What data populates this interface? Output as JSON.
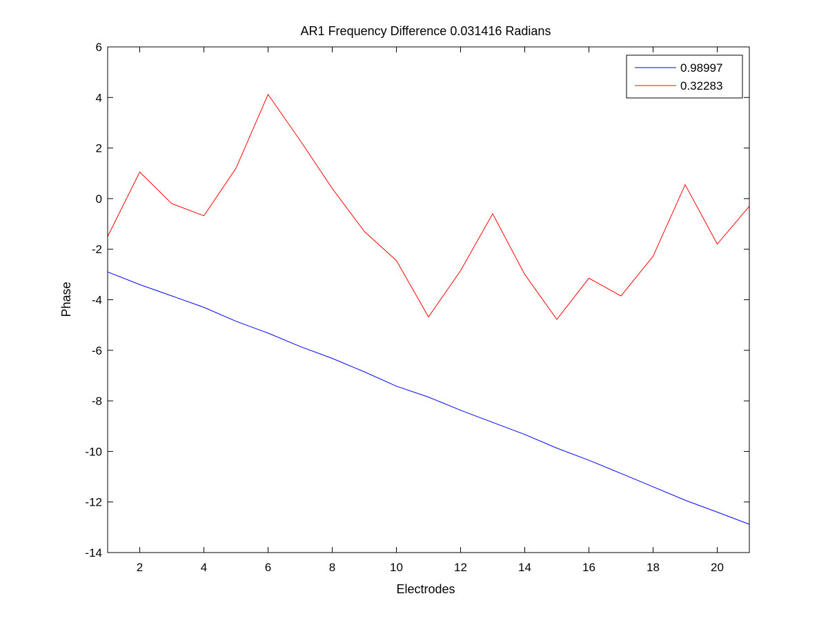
{
  "chart_data": {
    "type": "line",
    "title": "AR1 Frequency Difference 0.031416 Radians",
    "xlabel": "Electrodes",
    "ylabel": "Phase",
    "xlim": [
      1,
      21
    ],
    "ylim": [
      -14,
      6
    ],
    "xticks": [
      2,
      4,
      6,
      8,
      10,
      12,
      14,
      16,
      18,
      20
    ],
    "yticks": [
      -14,
      -12,
      -10,
      -8,
      -6,
      -4,
      -2,
      0,
      2,
      4,
      6
    ],
    "grid": false,
    "legend_position": "top-right",
    "x": [
      1,
      2,
      3,
      4,
      5,
      6,
      7,
      8,
      9,
      10,
      11,
      12,
      13,
      14,
      15,
      16,
      17,
      18,
      19,
      20,
      21
    ],
    "series": [
      {
        "name": "0.98997",
        "color": "#0000ff",
        "values": [
          -2.9,
          -3.4,
          -3.85,
          -4.3,
          -4.85,
          -5.32,
          -5.85,
          -6.32,
          -6.85,
          -7.42,
          -7.85,
          -8.37,
          -8.85,
          -9.33,
          -9.87,
          -10.35,
          -10.87,
          -11.4,
          -11.93,
          -12.4,
          -12.88
        ]
      },
      {
        "name": "0.32283",
        "color": "#ff0000",
        "values": [
          -1.5,
          1.05,
          -0.2,
          -0.68,
          1.2,
          4.12,
          2.3,
          0.4,
          -1.3,
          -2.45,
          -4.68,
          -2.85,
          -0.6,
          -3.0,
          -4.78,
          -3.15,
          -3.85,
          -2.28,
          0.55,
          -1.8,
          -0.3
        ]
      }
    ]
  }
}
